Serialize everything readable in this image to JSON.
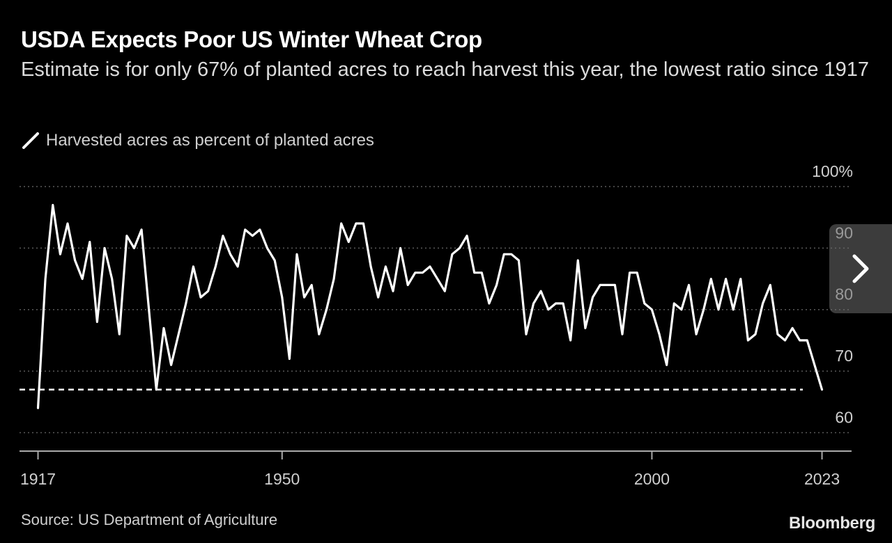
{
  "header": {
    "title": "USDA Expects Poor US Winter Wheat Crop",
    "subtitle": "Estimate is for only 67% of planted acres to reach harvest this year, the lowest ratio since 1917"
  },
  "legend": {
    "label": "Harvested acres as percent of planted acres"
  },
  "footer": {
    "source": "Source: US Department of Agriculture",
    "brand": "Bloomberg"
  },
  "nav": {
    "next_icon": "chevron-right-icon"
  },
  "colors": {
    "background": "#000000",
    "line": "#ffffff",
    "grid": "#555555",
    "text": "#cfcfcf"
  },
  "chart_data": {
    "type": "line",
    "title": "USDA Expects Poor US Winter Wheat Crop",
    "subtitle": "Estimate is for only 67% of planted acres to reach harvest this year, the lowest ratio since 1917",
    "series": [
      {
        "name": "Harvested acres as percent of planted acres",
        "x": [
          1917,
          1918,
          1919,
          1920,
          1921,
          1922,
          1923,
          1924,
          1925,
          1926,
          1927,
          1928,
          1929,
          1930,
          1931,
          1932,
          1933,
          1934,
          1935,
          1936,
          1937,
          1938,
          1939,
          1940,
          1941,
          1942,
          1943,
          1944,
          1945,
          1946,
          1947,
          1948,
          1949,
          1950,
          1951,
          1952,
          1953,
          1954,
          1955,
          1956,
          1957,
          1958,
          1959,
          1960,
          1961,
          1962,
          1963,
          1964,
          1965,
          1966,
          1967,
          1968,
          1969,
          1970,
          1971,
          1972,
          1973,
          1974,
          1975,
          1976,
          1977,
          1978,
          1979,
          1980,
          1981,
          1982,
          1983,
          1984,
          1985,
          1986,
          1987,
          1988,
          1989,
          1990,
          1991,
          1992,
          1993,
          1994,
          1995,
          1996,
          1997,
          1998,
          1999,
          2000,
          2001,
          2002,
          2003,
          2004,
          2005,
          2006,
          2007,
          2008,
          2009,
          2010,
          2011,
          2012,
          2013,
          2014,
          2015,
          2016,
          2017,
          2018,
          2019,
          2020,
          2021,
          2022,
          2023
        ],
        "values": [
          64,
          85,
          97,
          89,
          94,
          88,
          85,
          91,
          78,
          90,
          85,
          76,
          92,
          90,
          93,
          80,
          67,
          77,
          71,
          76,
          81,
          87,
          82,
          83,
          87,
          92,
          89,
          87,
          93,
          92,
          93,
          90,
          88,
          82,
          72,
          89,
          82,
          84,
          76,
          80,
          85,
          94,
          91,
          94,
          94,
          87,
          82,
          87,
          83,
          90,
          84,
          86,
          86,
          87,
          85,
          83,
          89,
          90,
          92,
          86,
          86,
          81,
          84,
          89,
          89,
          88,
          76,
          81,
          83,
          80,
          81,
          81,
          75,
          88,
          77,
          82,
          84,
          84,
          84,
          76,
          86,
          86,
          81,
          80,
          76,
          71,
          81,
          80,
          84,
          76,
          80,
          85,
          80,
          85,
          80,
          85,
          75,
          76,
          81,
          84,
          76,
          75,
          77,
          75,
          75,
          71,
          67
        ]
      }
    ],
    "reference_lines": [
      {
        "y": 67,
        "style": "dashed",
        "label": ""
      }
    ],
    "y_ticks": [
      {
        "value": 100,
        "label": "100%"
      },
      {
        "value": 90,
        "label": "90"
      },
      {
        "value": 80,
        "label": "80"
      },
      {
        "value": 70,
        "label": "70"
      },
      {
        "value": 60,
        "label": "60"
      }
    ],
    "x_ticks": [
      {
        "value": 1917,
        "label": "1917"
      },
      {
        "value": 1950,
        "label": "1950"
      },
      {
        "value": 2000,
        "label": "2000"
      },
      {
        "value": 2023,
        "label": "2023"
      }
    ],
    "xlim": [
      1914.5,
      2027
    ],
    "ylim": [
      57,
      100
    ],
    "grid": "horizontal-dotted",
    "legend_position": "top-left"
  }
}
